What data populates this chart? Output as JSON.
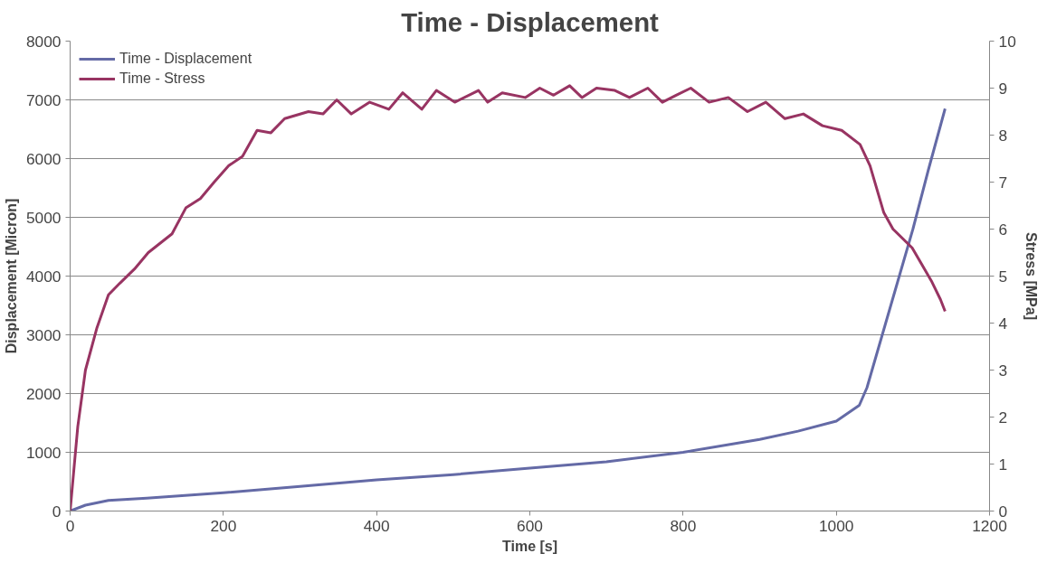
{
  "chart_data": {
    "type": "line",
    "title": "Time - Displacement",
    "xlabel": "Time [s]",
    "ylabel": "Displacement [Micron]",
    "y2label": "Stress [MPa]",
    "xlim": [
      0,
      1200
    ],
    "xticks": [
      0,
      200,
      400,
      600,
      800,
      1000,
      1200
    ],
    "ylim": [
      0,
      8000
    ],
    "yticks": [
      0,
      1000,
      2000,
      3000,
      4000,
      5000,
      6000,
      7000,
      8000
    ],
    "y2lim": [
      0,
      10
    ],
    "y2ticks": [
      0,
      1,
      2,
      3,
      4,
      5,
      6,
      7,
      8,
      9,
      10
    ],
    "grid": "y",
    "legend": "top left",
    "marker": "none",
    "line_style": "solid",
    "series": [
      {
        "name": "Time - Displacement",
        "color": "#646aa6",
        "x": [
          0,
          20,
          50,
          100,
          200,
          300,
          400,
          500,
          600,
          700,
          800,
          900,
          950,
          1000,
          1030,
          1040,
          1060,
          1080,
          1100,
          1120,
          1142
        ],
        "values": [
          0,
          100,
          180,
          220,
          310,
          420,
          530,
          620,
          730,
          840,
          1000,
          1220,
          1360,
          1530,
          1800,
          2100,
          3000,
          3900,
          4800,
          5800,
          6850
        ]
      },
      {
        "name": "Time - Stress",
        "color": "#983462",
        "axis": "y2",
        "x": [
          0,
          10,
          20,
          35,
          50,
          65,
          84,
          102,
          133,
          151,
          170,
          188,
          207,
          225,
          244,
          262,
          280,
          311,
          330,
          348,
          367,
          391,
          416,
          434,
          459,
          478,
          502,
          533,
          545,
          564,
          594,
          613,
          631,
          652,
          668,
          687,
          711,
          730,
          754,
          773,
          791,
          810,
          834,
          859,
          884,
          908,
          933,
          957,
          982,
          1007,
          1031,
          1044,
          1062,
          1074,
          1099,
          1124,
          1136,
          1142
        ],
        "values": [
          0,
          1.8,
          3.0,
          3.9,
          4.6,
          4.85,
          5.15,
          5.5,
          5.9,
          6.45,
          6.65,
          7.0,
          7.35,
          7.55,
          8.1,
          8.05,
          8.35,
          8.5,
          8.45,
          8.75,
          8.45,
          8.7,
          8.55,
          8.9,
          8.55,
          8.95,
          8.7,
          8.95,
          8.7,
          8.9,
          8.8,
          9.0,
          8.85,
          9.05,
          8.8,
          9.0,
          8.95,
          8.8,
          9.0,
          8.7,
          8.85,
          9.0,
          8.7,
          8.8,
          8.5,
          8.7,
          8.35,
          8.45,
          8.2,
          8.1,
          7.8,
          7.35,
          6.35,
          6.0,
          5.6,
          4.9,
          4.5,
          4.25
        ]
      }
    ]
  }
}
